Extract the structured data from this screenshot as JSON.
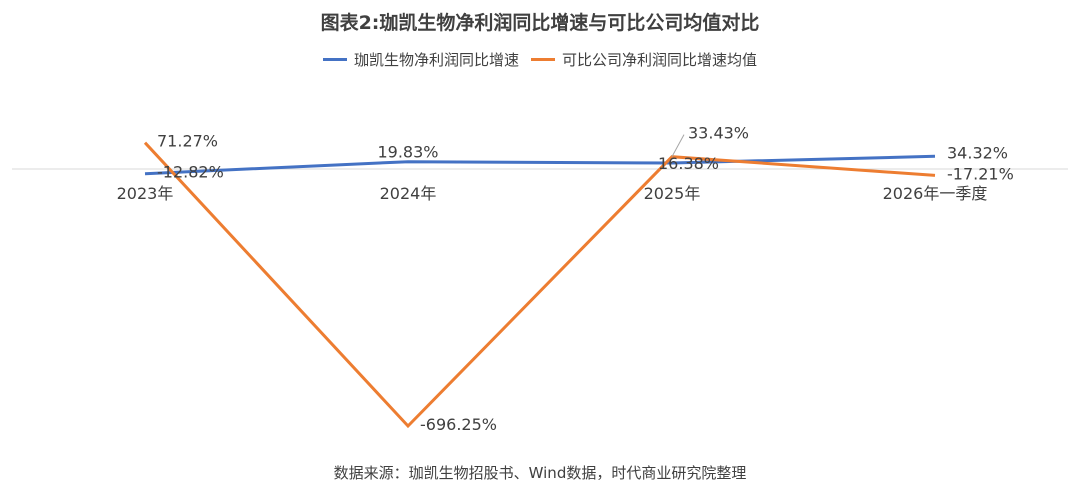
{
  "title": "图表2:珈凯生物净利润同比增速与可比公司均值对比",
  "source": "数据来源：珈凯生物招股书、Wind数据，时代商业研究院整理",
  "chart_data": {
    "type": "line",
    "categories": [
      "2023年",
      "2024年",
      "2025年",
      "2026年一季度"
    ],
    "series": [
      {
        "name": "珈凯生物净利润同比增速",
        "color": "#4472C4",
        "values": [
          -12.82,
          19.83,
          16.38,
          34.32
        ],
        "labels": [
          "-12.82%",
          "19.83%",
          "16.38%",
          "34.32%"
        ]
      },
      {
        "name": "可比公司净利润同比增速均值",
        "color": "#ED7D31",
        "values": [
          71.27,
          -696.25,
          33.43,
          -17.21
        ],
        "labels": [
          "71.27%",
          "-696.25%",
          "33.43%",
          "-17.21%"
        ]
      }
    ],
    "xlabel": "",
    "ylabel": "",
    "grid": false,
    "legend": "top",
    "ylim": [
      -696.25,
      71.27
    ]
  }
}
